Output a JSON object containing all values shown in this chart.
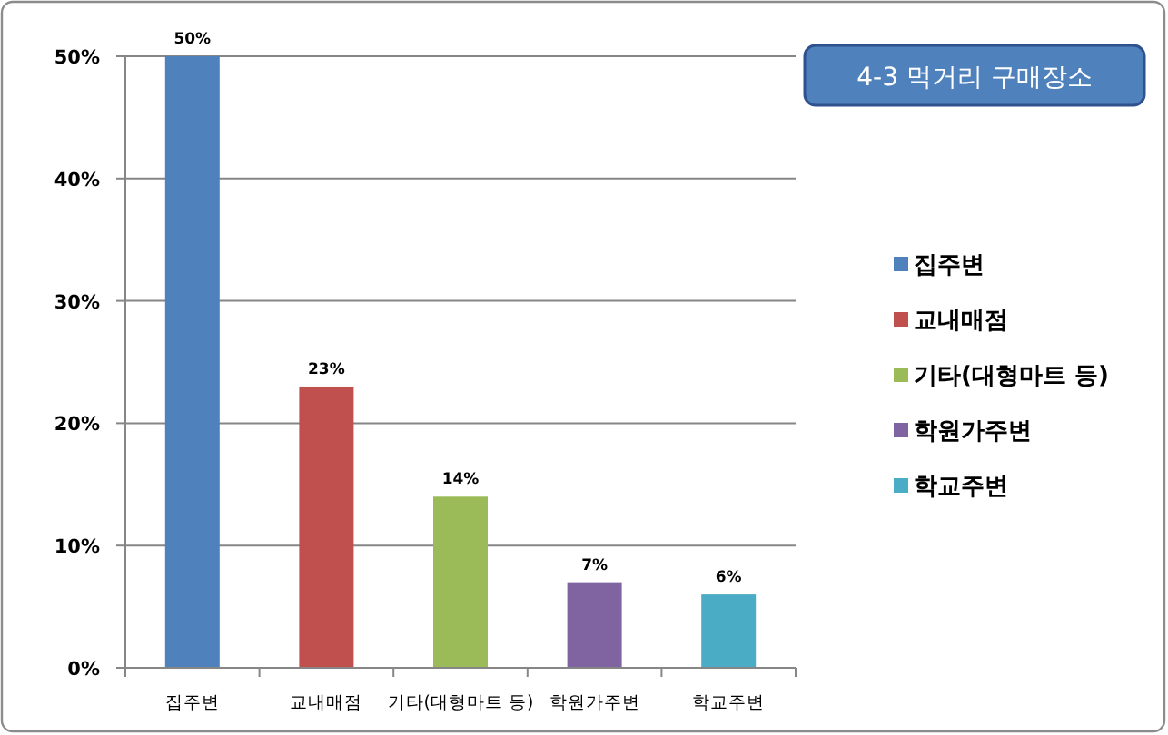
{
  "chart_data": {
    "type": "bar",
    "title": "4-3 먹거리 구매장소",
    "categories": [
      "집주변",
      "교내매점",
      "기타(대형마트 등)",
      "학원가주변",
      "학교주변"
    ],
    "stacked": true,
    "series": [
      {
        "name": "집주변",
        "color": "#4f81bd",
        "values": [
          50,
          null,
          null,
          null,
          null
        ],
        "value_labels": [
          "50%",
          null,
          null,
          null,
          null
        ]
      },
      {
        "name": "교내매점",
        "color": "#c0504d",
        "values": [
          null,
          23,
          null,
          null,
          null
        ],
        "value_labels": [
          null,
          "23%",
          null,
          null,
          null
        ]
      },
      {
        "name": "기타(대형마트 등)",
        "color": "#9bbb59",
        "values": [
          null,
          null,
          14,
          null,
          null
        ],
        "value_labels": [
          null,
          null,
          "14%",
          null,
          null
        ]
      },
      {
        "name": "학원가주변",
        "color": "#8064a2",
        "values": [
          null,
          null,
          null,
          7,
          null
        ],
        "value_labels": [
          null,
          null,
          null,
          "7%",
          null
        ]
      },
      {
        "name": "학교주변",
        "color": "#4bacc6",
        "values": [
          null,
          null,
          null,
          null,
          6
        ],
        "value_labels": [
          null,
          null,
          null,
          null,
          "6%"
        ]
      }
    ],
    "ylim": [
      0,
      50
    ],
    "yticks": [
      {
        "value": 0,
        "label": "0%"
      },
      {
        "value": 10,
        "label": "10%"
      },
      {
        "value": 20,
        "label": "20%"
      },
      {
        "value": 30,
        "label": "30%"
      },
      {
        "value": 40,
        "label": "40%"
      },
      {
        "value": 50,
        "label": "50%"
      }
    ],
    "grid": "y",
    "legend": "right"
  }
}
